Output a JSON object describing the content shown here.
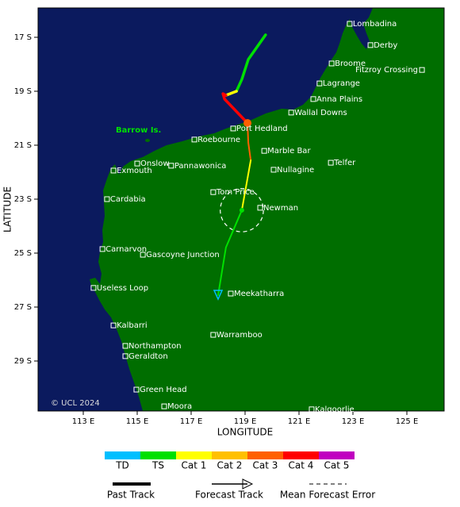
{
  "map": {
    "xlabel": "LONGITUDE",
    "ylabel": "LATITUDE",
    "credit": "© UCL 2024",
    "island": "Barrow Is.",
    "xticks": [
      {
        "value": 113,
        "label": "113 E"
      },
      {
        "value": 115,
        "label": "115 E"
      },
      {
        "value": 117,
        "label": "117 E"
      },
      {
        "value": 119,
        "label": "119 E"
      },
      {
        "value": 121,
        "label": "121 E"
      },
      {
        "value": 123,
        "label": "123 E"
      },
      {
        "value": 125,
        "label": "125 E"
      }
    ],
    "yticks": [
      {
        "value": 17,
        "label": "17 S"
      },
      {
        "value": 19,
        "label": "19 S"
      },
      {
        "value": 21,
        "label": "21 S"
      },
      {
        "value": 23,
        "label": "23 S"
      },
      {
        "value": 25,
        "label": "25 S"
      },
      {
        "value": 27,
        "label": "27 S"
      },
      {
        "value": 29,
        "label": "29 S"
      }
    ],
    "towns": [
      {
        "label": "Lombadina",
        "lon": 122.88,
        "lat": 16.5
      },
      {
        "label": "Derby",
        "lon": 123.65,
        "lat": 17.29
      },
      {
        "label": "Broome",
        "lon": 122.21,
        "lat": 17.97
      },
      {
        "label": "Fitzroy Crossing",
        "lon": 125.56,
        "lat": 18.21
      },
      {
        "label": "Lagrange",
        "lon": 121.76,
        "lat": 18.71
      },
      {
        "label": "Anna Plains",
        "lon": 121.53,
        "lat": 19.29
      },
      {
        "label": "Wallal Downs",
        "lon": 120.71,
        "lat": 19.79
      },
      {
        "label": "Port Hedland",
        "lon": 118.56,
        "lat": 20.38
      },
      {
        "label": "Roebourne",
        "lon": 117.12,
        "lat": 20.79
      },
      {
        "label": "Marble Bar",
        "lon": 119.71,
        "lat": 21.21
      },
      {
        "label": "Onslow",
        "lon": 115.0,
        "lat": 21.68
      },
      {
        "label": "Exmouth",
        "lon": 114.12,
        "lat": 21.94
      },
      {
        "label": "Pannawonica",
        "lon": 116.26,
        "lat": 21.76
      },
      {
        "label": "Telfer",
        "lon": 122.18,
        "lat": 21.65
      },
      {
        "label": "Nullagine",
        "lon": 120.06,
        "lat": 21.91
      },
      {
        "label": "Tom Price",
        "lon": 117.82,
        "lat": 22.74
      },
      {
        "label": "Newman",
        "lon": 119.56,
        "lat": 23.32
      },
      {
        "label": "Cardabia",
        "lon": 113.88,
        "lat": 23.0
      },
      {
        "label": "Carnarvon",
        "lon": 113.71,
        "lat": 24.85
      },
      {
        "label": "Gascoyne Junction",
        "lon": 115.21,
        "lat": 25.06
      },
      {
        "label": "Useless Loop",
        "lon": 113.38,
        "lat": 26.29
      },
      {
        "label": "Meekatharra",
        "lon": 118.47,
        "lat": 26.5
      },
      {
        "label": "Kalbarri",
        "lon": 114.12,
        "lat": 27.68
      },
      {
        "label": "Warramboo",
        "lon": 117.82,
        "lat": 28.03
      },
      {
        "label": "Northampton",
        "lon": 114.56,
        "lat": 28.44
      },
      {
        "label": "Geraldton",
        "lon": 114.56,
        "lat": 28.82
      },
      {
        "label": "Green Head",
        "lon": 114.97,
        "lat": 30.06
      },
      {
        "label": "Moora",
        "lon": 116.0,
        "lat": 30.68
      },
      {
        "label": "Kalgoorlie",
        "lon": 121.47,
        "lat": 30.79
      }
    ],
    "track": [
      {
        "color": "#00e000",
        "past": true,
        "lon": [
          119.76,
          119.12,
          118.88,
          118.68
        ],
        "lat": [
          16.91,
          17.82,
          18.56,
          19.0
        ]
      },
      {
        "color": "#ffff00",
        "past": true,
        "lon": [
          118.68,
          118.29
        ],
        "lat": [
          19.0,
          19.15
        ]
      },
      {
        "color": "#ff0000",
        "past": true,
        "lon": [
          118.29,
          118.18,
          118.24,
          119.09
        ],
        "lat": [
          19.15,
          19.09,
          19.29,
          20.18
        ]
      },
      {
        "color": "#ff6000",
        "past": false,
        "lon": [
          119.09,
          119.12,
          119.21
        ],
        "lat": [
          20.18,
          20.91,
          21.56
        ]
      },
      {
        "color": "#ffff00",
        "past": false,
        "lon": [
          119.21,
          118.88
        ],
        "lat": [
          21.56,
          23.41
        ]
      },
      {
        "color": "#00e000",
        "past": false,
        "lon": [
          118.88,
          118.29,
          118.0
        ],
        "lat": [
          23.41,
          24.79,
          26.56
        ]
      }
    ],
    "positions": [
      {
        "color": "#ff6000",
        "lon": 119.09,
        "lat": 20.18
      },
      {
        "color": "#00e000",
        "lon": 118.88,
        "lat": 23.41
      }
    ],
    "error_circle": {
      "lon": 118.88,
      "lat": 23.41,
      "radius": 0.8
    },
    "end_marker": {
      "color": "#00bfff",
      "lon": 118.0,
      "lat": 26.56
    }
  },
  "legend": {
    "categories": [
      {
        "label": "TD",
        "color": "#00bfff"
      },
      {
        "label": "TS",
        "color": "#00e000"
      },
      {
        "label": "Cat 1",
        "color": "#ffff00"
      },
      {
        "label": "Cat 2",
        "color": "#ffc000"
      },
      {
        "label": "Cat 3",
        "color": "#ff6000"
      },
      {
        "label": "Cat 4",
        "color": "#ff0000"
      },
      {
        "label": "Cat 5",
        "color": "#c000c0"
      }
    ],
    "lines": [
      "Past Track",
      "Forecast Track",
      "Mean Forecast Error"
    ]
  }
}
